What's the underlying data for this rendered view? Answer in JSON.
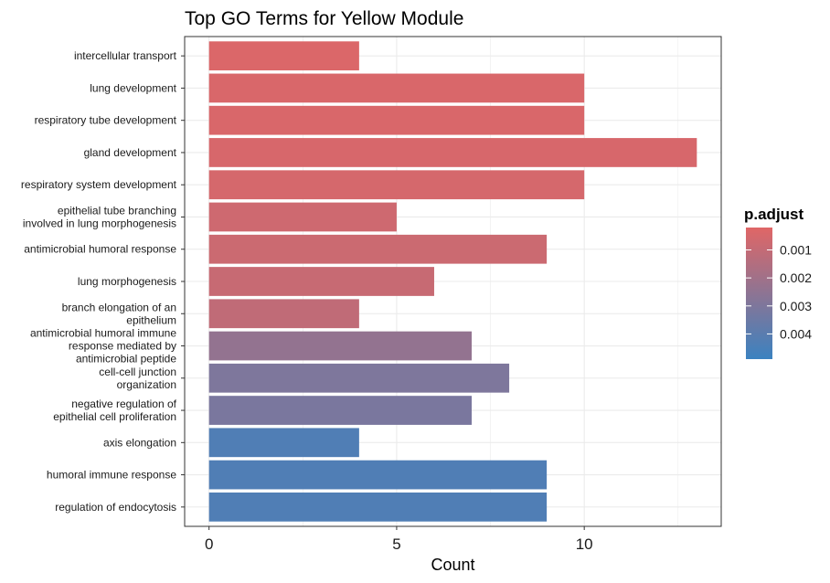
{
  "chart_data": {
    "type": "bar",
    "orientation": "horizontal",
    "title": "Top GO Terms for Yellow Module",
    "xlabel": "Count",
    "ylabel": "",
    "xlim": [
      -0.65,
      13.65
    ],
    "x_ticks": [
      0,
      5,
      10
    ],
    "x_tick_labels": [
      "0",
      "5",
      "10"
    ],
    "grid": true,
    "categories": [
      "intercellular transport",
      "lung development",
      "respiratory tube development",
      "gland development",
      "respiratory system development",
      "epithelial tube branching\ninvolved in lung morphogenesis",
      "antimicrobial humoral response",
      "lung morphogenesis",
      "branch elongation of an\nepithelium",
      "antimicrobial humoral immune\nresponse mediated by\nantimicrobial peptide",
      "cell-cell junction\norganization",
      "negative regulation of\nepithelial cell proliferation",
      "axis elongation",
      "humoral immune response",
      "regulation of endocytosis"
    ],
    "values": [
      4,
      10,
      10,
      13,
      10,
      5,
      9,
      6,
      4,
      7,
      8,
      7,
      4,
      9,
      9
    ],
    "p_adjust": [
      0.00035,
      0.0004,
      0.0004,
      0.00045,
      0.0005,
      0.0007,
      0.0008,
      0.0009,
      0.0011,
      0.0024,
      0.003,
      0.0031,
      0.0043,
      0.0043,
      0.0043
    ],
    "legend": {
      "title": "p.adjust",
      "position": "right",
      "ticks": [
        0.001,
        0.002,
        0.003,
        0.004
      ],
      "tick_labels": [
        "0.001",
        "0.002",
        "0.003",
        "0.004"
      ],
      "range": [
        0.0002,
        0.0049
      ],
      "color_low": "#e06666",
      "color_high": "#3b82c0"
    },
    "colors": {
      "low": "#e06666",
      "high": "#3b82c0",
      "grid": "#ebebeb",
      "panel_border": "#333333"
    }
  }
}
